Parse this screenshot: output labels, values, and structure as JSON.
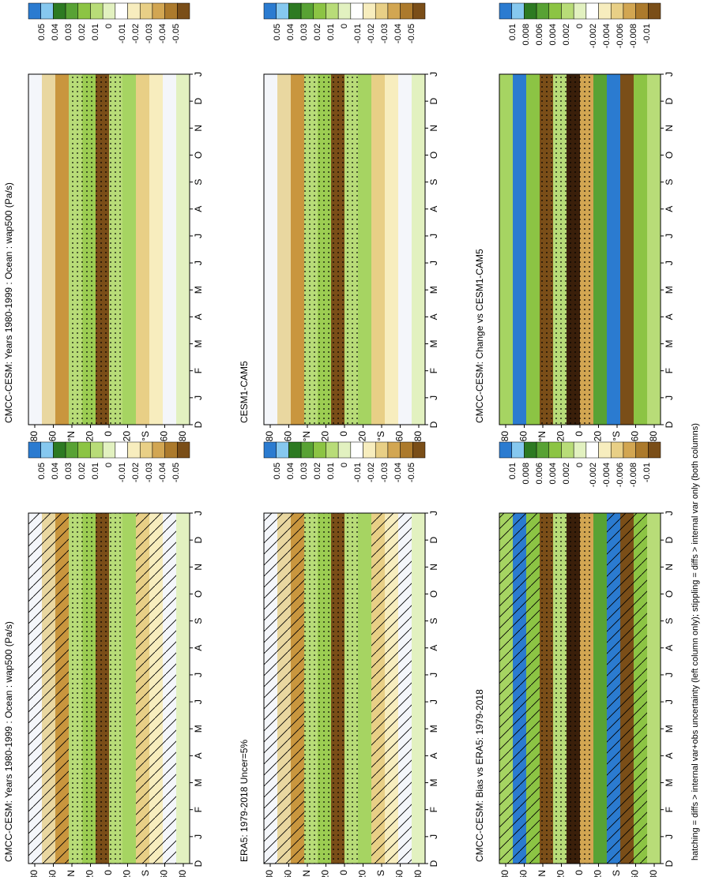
{
  "panels": [
    {
      "title": "CMCC-CESM: Years 1980-1999 : Ocean : wap500 (Pa/s)",
      "colorbar": [
        0.05,
        0.04,
        0.03,
        0.02,
        0.01,
        0,
        -0.01,
        -0.02,
        -0.03,
        -0.04,
        -0.05
      ]
    },
    {
      "title": "ERA5: 1979-2018 Uncer=5%",
      "colorbar": [
        0.05,
        0.04,
        0.03,
        0.02,
        0.01,
        0,
        -0.01,
        -0.02,
        -0.03,
        -0.04,
        -0.05
      ]
    },
    {
      "title": "CMCC-CESM: Bias vs ERA5: 1979-2018",
      "colorbar": [
        0.01,
        0.008,
        0.006,
        0.004,
        0.002,
        0,
        -0.002,
        -0.004,
        -0.006,
        -0.008,
        -0.01
      ]
    },
    {
      "title": "CMCC-CESM: Years 1980-1999 : Ocean : wap500 (Pa/s)",
      "colorbar": [
        0.05,
        0.04,
        0.03,
        0.02,
        0.01,
        0,
        -0.01,
        -0.02,
        -0.03,
        -0.04,
        -0.05
      ]
    },
    {
      "title": "CESM1-CAM5",
      "colorbar": [
        0.05,
        0.04,
        0.03,
        0.02,
        0.01,
        0,
        -0.01,
        -0.02,
        -0.03,
        -0.04,
        -0.05
      ]
    },
    {
      "title": "CMCC-CESM: Change vs CESM1-CAM5",
      "colorbar": [
        0.01,
        0.008,
        0.006,
        0.004,
        0.002,
        0,
        -0.002,
        -0.004,
        -0.006,
        -0.008,
        -0.01
      ]
    }
  ],
  "months": [
    "D",
    "J",
    "F",
    "M",
    "A",
    "M",
    "J",
    "J",
    "A",
    "S",
    "O",
    "N",
    "D",
    "J"
  ],
  "lat_labels": [
    "80",
    "60",
    "°N",
    "20",
    "0",
    "20",
    "°S",
    "60",
    "80"
  ],
  "caption": "hatching = diffs > internal var+obs uncertainty (left column only); stippling = diffs > internal var only (both columns)"
}
